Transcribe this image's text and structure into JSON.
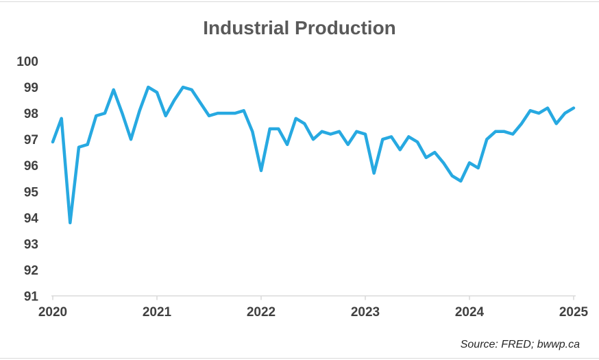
{
  "title": "Industrial Production",
  "source_note": "Source: FRED; bwwp.ca",
  "colors": {
    "line": "#27a9e1",
    "axis": "#d9d9d9",
    "title_text": "#595959",
    "tick_text": "#404040"
  },
  "chart_data": {
    "type": "line",
    "title": "Industrial Production",
    "xlabel": "",
    "ylabel": "",
    "x_start": "2020-01",
    "x_end": "2025-01",
    "frequency": "monthly",
    "x_tick_labels": [
      "2020",
      "2021",
      "2022",
      "2023",
      "2024",
      "2025"
    ],
    "y_ticks": [
      91,
      92,
      93,
      94,
      95,
      96,
      97,
      98,
      99,
      100
    ],
    "ylim": [
      91,
      100
    ],
    "grid": false,
    "legend_position": "none",
    "annotations": [
      "Source: FRED; bwwp.ca"
    ],
    "series": [
      {
        "name": "Industrial Production",
        "color": "#27a9e1",
        "values": [
          96.9,
          97.8,
          93.8,
          96.7,
          96.8,
          97.9,
          98.0,
          98.9,
          98.0,
          97.0,
          98.1,
          99.0,
          98.8,
          97.9,
          98.5,
          99.0,
          98.9,
          98.4,
          97.9,
          98.0,
          98.0,
          98.0,
          98.1,
          97.3,
          95.8,
          97.4,
          97.4,
          96.8,
          97.8,
          97.6,
          97.0,
          97.3,
          97.2,
          97.3,
          96.8,
          97.3,
          97.2,
          95.7,
          97.0,
          97.1,
          96.6,
          97.1,
          96.9,
          96.3,
          96.5,
          96.1,
          95.6,
          95.4,
          96.1,
          95.9,
          97.0,
          97.3,
          97.3,
          97.2,
          97.6,
          98.1,
          98.0,
          98.2,
          97.6,
          98.0,
          98.2
        ]
      }
    ]
  }
}
